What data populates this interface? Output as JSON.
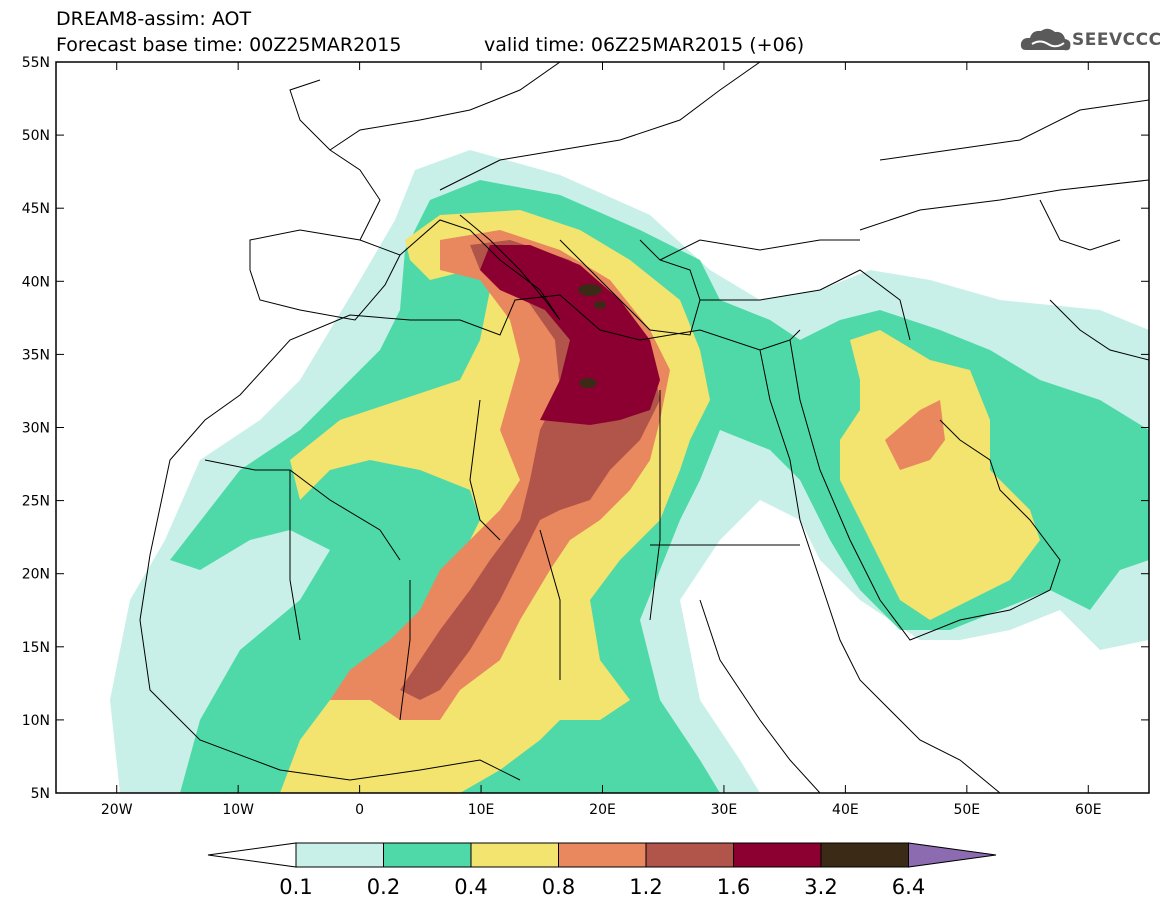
{
  "header": {
    "title": "DREAM8-assim: AOT",
    "base_time": "Forecast base time: 00Z25MAR2015",
    "valid_time": "valid time: 06Z25MAR2015 (+06)",
    "logo_text": "SEEVCCC"
  },
  "map": {
    "lat_labels": [
      "55N",
      "50N",
      "45N",
      "40N",
      "35N",
      "30N",
      "25N",
      "20N",
      "15N",
      "10N",
      "5N"
    ],
    "lon_labels": [
      "20W",
      "10W",
      "0",
      "10E",
      "20E",
      "30E",
      "40E",
      "50E",
      "60E"
    ],
    "lon_range": [
      -25,
      65
    ],
    "lat_range": [
      5,
      55
    ]
  },
  "legend": {
    "levels": [
      "0.1",
      "0.2",
      "0.4",
      "0.8",
      "1.2",
      "1.6",
      "3.2",
      "6.4"
    ],
    "colors": {
      "below": "#ffffff",
      "c1": "#c8f0e8",
      "c2": "#4fd9a8",
      "c3": "#f3e36f",
      "c4": "#e9875e",
      "c5": "#b1544a",
      "c6": "#8b0030",
      "c7": "#3b2a16",
      "above": "#8d6bb0"
    }
  }
}
